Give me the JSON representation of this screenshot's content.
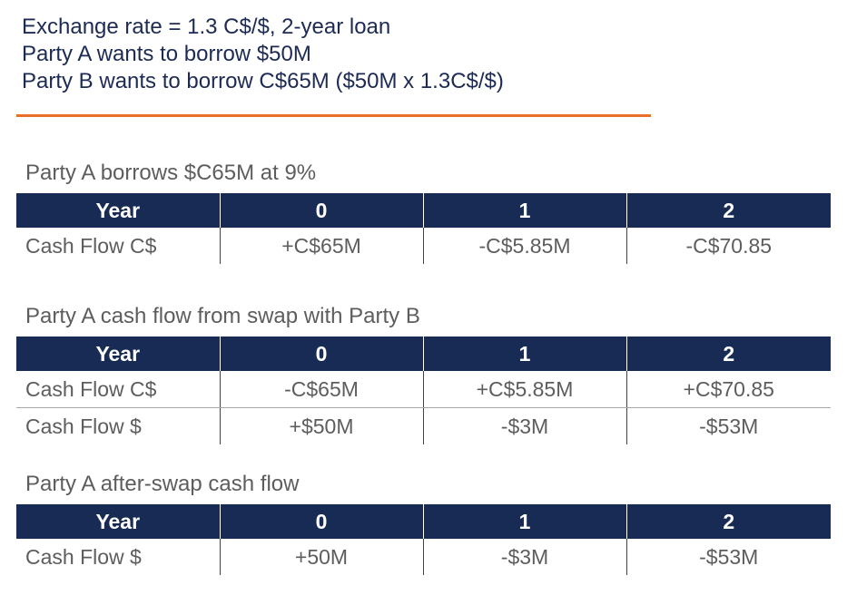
{
  "intro": {
    "lines": [
      "Exchange rate = 1.3 C$/$, 2-year loan",
      "Party A wants to borrow $50M",
      "Party B wants to borrow C$65M ($50M x 1.3C$/$)"
    ]
  },
  "colors": {
    "header_bg": "#172b55",
    "accent_rule": "#e8702a",
    "title_text": "#1d2b54",
    "body_text": "#5d5d5d"
  },
  "tables": [
    {
      "title": "Party A borrows $C65M at 9%",
      "headers": [
        "Year",
        "0",
        "1",
        "2"
      ],
      "rows": [
        [
          "Cash Flow C$",
          "+C$65M",
          "-C$5.85M",
          "-C$70.85"
        ]
      ]
    },
    {
      "title": "Party A cash flow from swap with Party B",
      "headers": [
        "Year",
        "0",
        "1",
        "2"
      ],
      "rows": [
        [
          "Cash Flow C$",
          "-C$65M",
          "+C$5.85M",
          "+C$70.85"
        ],
        [
          "Cash Flow $",
          "+$50M",
          "-$3M",
          "-$53M"
        ]
      ]
    },
    {
      "title": "Party A after-swap cash flow",
      "headers": [
        "Year",
        "0",
        "1",
        "2"
      ],
      "rows": [
        [
          "Cash Flow $",
          "+50M",
          "-$3M",
          "-$53M"
        ]
      ]
    }
  ]
}
